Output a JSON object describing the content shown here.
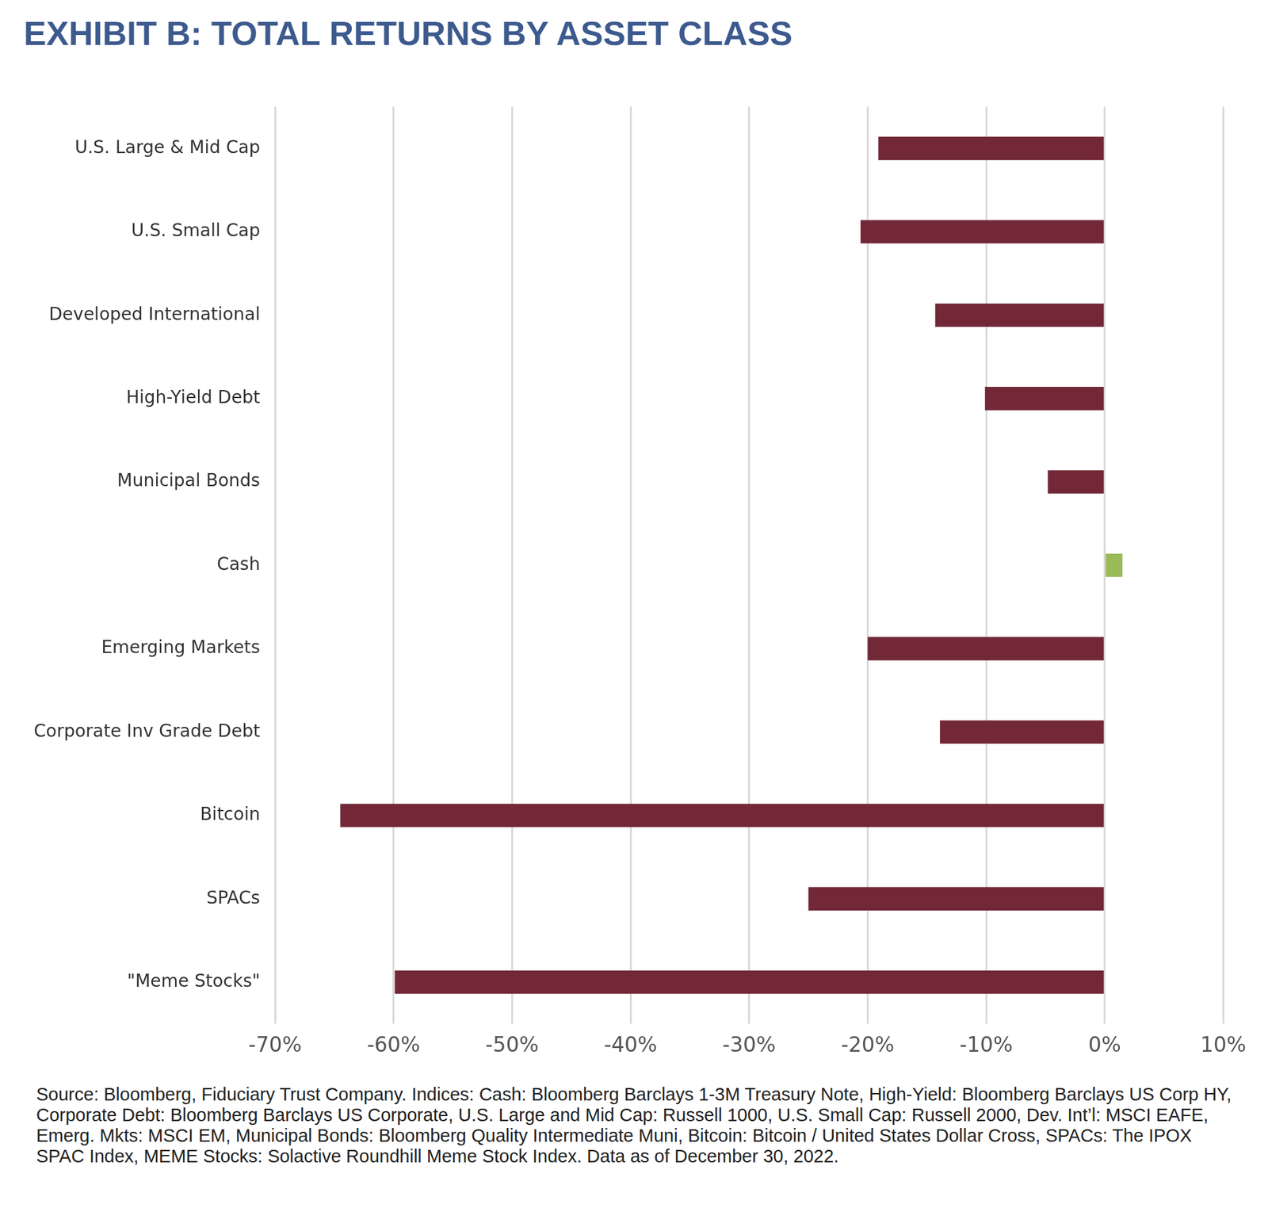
{
  "chart_data": {
    "type": "bar",
    "orientation": "horizontal",
    "title": "EXHIBIT B: TOTAL RETURNS BY ASSET CLASS",
    "categories": [
      "U.S. Large & Mid Cap",
      "U.S. Small Cap",
      "Developed International",
      "High-Yield Debt",
      "Municipal Bonds",
      "Cash",
      "Emerging Markets",
      "Corporate Inv Grade Debt",
      "Bitcoin",
      "SPACs",
      "\"Meme Stocks\""
    ],
    "values": [
      -19.1,
      -20.6,
      -14.3,
      -10.1,
      -4.8,
      1.5,
      -20.0,
      -13.9,
      -64.5,
      -25.0,
      -59.9
    ],
    "colors": [
      "#722836",
      "#722836",
      "#722836",
      "#722836",
      "#722836",
      "#9bbb59",
      "#722836",
      "#722836",
      "#722836",
      "#722836",
      "#722836"
    ],
    "xlim": [
      -70,
      10
    ],
    "xticks": [
      {
        "value": -70,
        "label": "-70%"
      },
      {
        "value": -60,
        "label": "-60%"
      },
      {
        "value": -50,
        "label": "-50%"
      },
      {
        "value": -40,
        "label": "-40%"
      },
      {
        "value": -30,
        "label": "-30%"
      },
      {
        "value": -20,
        "label": "-20%"
      },
      {
        "value": -10,
        "label": "-10%"
      },
      {
        "value": 0,
        "label": "0%"
      },
      {
        "value": 10,
        "label": "10%"
      }
    ],
    "grid": true,
    "note": "Source: Bloomberg, Fiduciary Trust Company. Indices: Cash: Bloomberg Barclays 1-3M Treasury Note, High-Yield: Bloomberg Barclays US Corp HY, Corporate Debt: Bloomberg Barclays US Corporate, U.S. Large and Mid Cap: Russell 1000, U.S. Small Cap: Russell 2000, Dev. Int’l: MSCI EAFE, Emerg. Mkts: MSCI EM, Municipal Bonds: Bloomberg Quality Intermediate Muni, Bitcoin: Bitcoin / United States Dollar Cross, SPACs: The IPOX SPAC Index, MEME Stocks: Solactive Roundhill Meme Stock Index. Data as of December 30, 2022."
  }
}
